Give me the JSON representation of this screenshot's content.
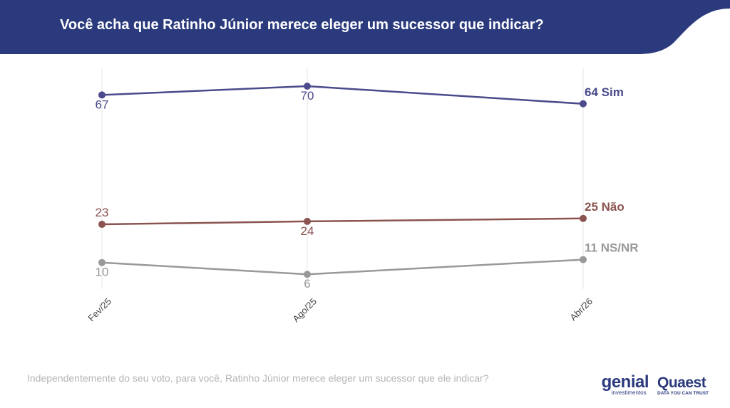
{
  "header": {
    "title": "Você acha que Ratinho Júnior merece eleger um sucessor que indicar?",
    "background_color": "#2b3a7d"
  },
  "footnote": "Independentemente do seu voto, para você, Ratinho Júnior merece eleger um sucessor que ele indicar?",
  "logos": {
    "genial_main": "genial",
    "genial_sub": "investimentos",
    "quaest_main": "Quaest",
    "quaest_sub": "DATA YOU CAN TRUST"
  },
  "chart_data": {
    "type": "line",
    "title": "Você acha que Ratinho Júnior merece eleger um sucessor que indicar?",
    "categories": [
      "Fev/25",
      "Ago/25",
      "Abr/26"
    ],
    "ylim": [
      0,
      75
    ],
    "grid": "vertical",
    "legend": "end-labels",
    "series": [
      {
        "name": "Sim",
        "values": [
          67,
          70,
          64
        ],
        "color": "#4a4a8c",
        "labels": [
          "67",
          "70",
          "64 Sim"
        ],
        "label_pos": [
          "below",
          "below",
          "above"
        ]
      },
      {
        "name": "Não",
        "values": [
          23,
          24,
          25
        ],
        "color": "#8b5450",
        "labels": [
          "23",
          "24",
          "25 Não"
        ],
        "label_pos": [
          "above",
          "below",
          "above"
        ]
      },
      {
        "name": "NS/NR",
        "values": [
          10,
          6,
          11
        ],
        "color": "#999999",
        "labels": [
          "10",
          "6",
          "11 NS/NR"
        ],
        "label_pos": [
          "below",
          "below",
          "above"
        ]
      }
    ]
  }
}
